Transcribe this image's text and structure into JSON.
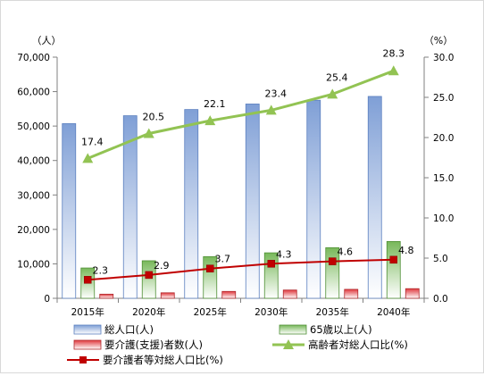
{
  "chart_data": {
    "type": "bar",
    "categories": [
      "2015年",
      "2020年",
      "2025年",
      "2030年",
      "2035年",
      "2040年"
    ],
    "y_left": {
      "unit_label": "（人）",
      "ylim": [
        0,
        70000
      ],
      "ticks": [
        "0",
        "10,000",
        "20,000",
        "30,000",
        "40,000",
        "50,000",
        "60,000",
        "70,000"
      ]
    },
    "y_right": {
      "unit_label": "（%）",
      "ylim": [
        0,
        30
      ],
      "ticks": [
        "0.0",
        "5.0",
        "10.0",
        "15.0",
        "20.0",
        "25.0",
        "30.0"
      ]
    },
    "grid": false,
    "legend_position": "bottom",
    "series": [
      {
        "name": "総人口(人)",
        "kind": "bar",
        "axis": "left",
        "color": "#7f9fd6",
        "values": [
          50700,
          53000,
          54800,
          56400,
          57500,
          58600
        ]
      },
      {
        "name": "65歳以上(人)",
        "kind": "bar",
        "axis": "left",
        "color": "#78b85a",
        "values": [
          8800,
          10900,
          12100,
          13200,
          14700,
          16500
        ]
      },
      {
        "name": "要介護(支援)者数(人)",
        "kind": "bar",
        "axis": "left",
        "color": "#e0393e",
        "values": [
          1200,
          1600,
          2000,
          2400,
          2600,
          2800
        ]
      },
      {
        "name": "高齢者対総人口比(%)",
        "kind": "line",
        "axis": "right",
        "color": "#92c353",
        "marker": "triangle",
        "values": [
          17.4,
          20.5,
          22.1,
          23.4,
          25.4,
          28.3
        ],
        "labels": [
          "17.4",
          "20.5",
          "22.1",
          "23.4",
          "25.4",
          "28.3"
        ]
      },
      {
        "name": "要介護者等対総人口比(%)",
        "kind": "line",
        "axis": "right",
        "color": "#c00000",
        "marker": "square",
        "values": [
          2.3,
          2.9,
          3.7,
          4.3,
          4.6,
          4.8
        ],
        "labels": [
          "2.3",
          "2.9",
          "3.7",
          "4.3",
          "4.6",
          "4.8"
        ]
      }
    ]
  }
}
